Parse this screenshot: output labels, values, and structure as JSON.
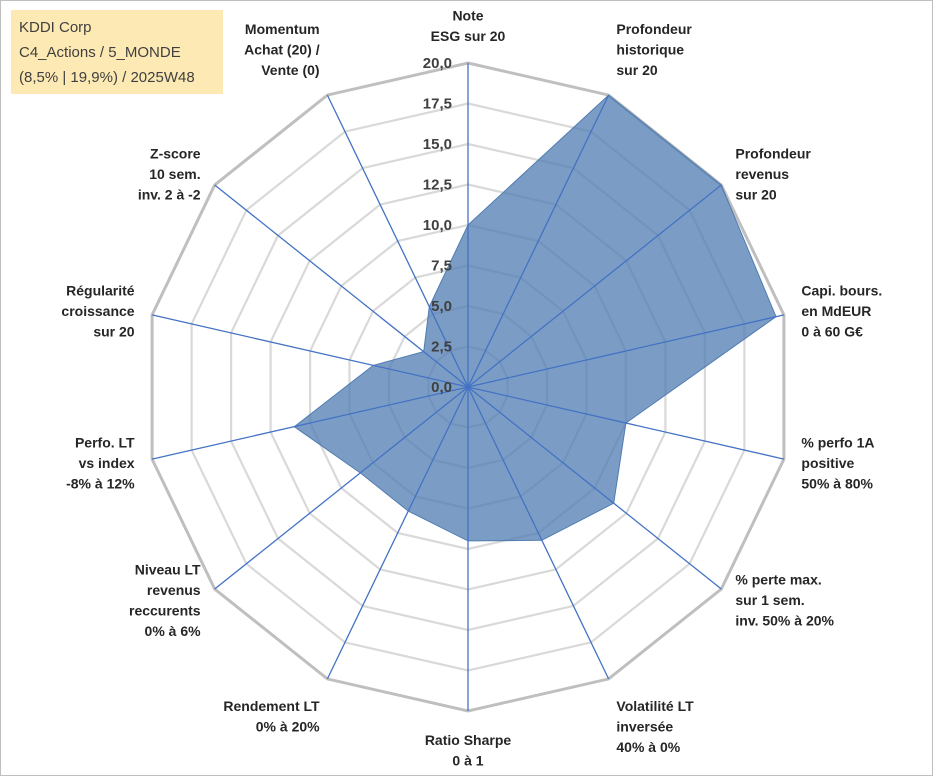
{
  "infobox": {
    "line1": "KDDI Corp",
    "line2": "C4_Actions / 5_MONDE",
    "line3": "(8,5% | 19,9%) / 2025W48"
  },
  "colors": {
    "fill": "#4f7cb1",
    "spoke": "#4472c4",
    "ring": "#d9d9d9",
    "outer_ring": "#bfbfbf"
  },
  "chart_data": {
    "type": "radar",
    "title": "",
    "rmin": 0,
    "rmax": 20,
    "ticks": [
      "0,0",
      "2,5",
      "5,0",
      "7,5",
      "10,0",
      "12,5",
      "15,0",
      "17,5",
      "20,0"
    ],
    "tick_values": [
      0,
      2.5,
      5,
      7.5,
      10,
      12.5,
      15,
      17.5,
      20
    ],
    "axes": [
      {
        "label": [
          "Note",
          "ESG sur 20"
        ],
        "value": 10
      },
      {
        "label": [
          "Profondeur",
          "historique",
          "sur 20"
        ],
        "value": 20
      },
      {
        "label": [
          "Profondeur",
          "revenus",
          "sur 20"
        ],
        "value": 20
      },
      {
        "label": [
          "Capi. bours.",
          "en MdEUR",
          "0 à 60 G€"
        ],
        "value": 19.5
      },
      {
        "label": [
          "% perfo 1A",
          "positive",
          "50% à 80%"
        ],
        "value": 10
      },
      {
        "label": [
          "% perte max.",
          "sur 1 sem.",
          "inv. 50% à 20%"
        ],
        "value": 11.5
      },
      {
        "label": [
          "Volatilité LT",
          "inversée",
          "40% à 0%"
        ],
        "value": 10.5
      },
      {
        "label": [
          "Ratio Sharpe",
          "0 à 1"
        ],
        "value": 9.5
      },
      {
        "label": [
          "Rendement LT",
          "0% à 20%"
        ],
        "value": 8.5
      },
      {
        "label": [
          "Niveau LT",
          "revenus",
          "reccurents",
          "0% à 6%"
        ],
        "value": 8.5
      },
      {
        "label": [
          "Perfo. LT",
          "vs index",
          "-8% à 12%"
        ],
        "value": 11
      },
      {
        "label": [
          "Régularité",
          "croissance",
          "sur 20"
        ],
        "value": 6
      },
      {
        "label": [
          "Z-score",
          "10 sem.",
          "inv. 2 à -2"
        ],
        "value": 3.5
      },
      {
        "label": [
          "Momentum",
          "Achat (20) /",
          "Vente (0)"
        ],
        "value": 5.5
      }
    ]
  }
}
